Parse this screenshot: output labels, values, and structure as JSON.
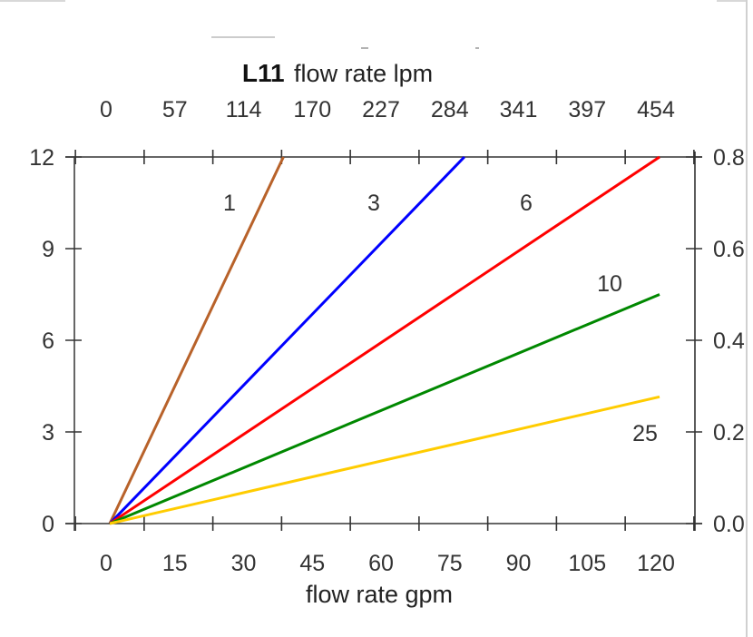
{
  "chart_data": {
    "type": "line",
    "title_bold": "L11",
    "title": "flow rate lpm",
    "xlabel": "flow rate gpm",
    "x_ticks": [
      0,
      15,
      30,
      45,
      60,
      75,
      90,
      105,
      120
    ],
    "x_top_ticks": [
      "0",
      "57",
      "114",
      "170",
      "227",
      "284",
      "341",
      "397",
      "454"
    ],
    "y_ticks": [
      "0",
      "3",
      "6",
      "9",
      "12"
    ],
    "y_right_ticks": [
      "0.0",
      "0.2",
      "0.4",
      "0.6",
      "0.8"
    ],
    "xlim": [
      0,
      120
    ],
    "ylim": [
      0,
      12
    ],
    "grid": false,
    "series": [
      {
        "name": "1",
        "color": "#b8622a",
        "x": [
          0,
          37.9
        ],
        "y": [
          0,
          12
        ]
      },
      {
        "name": "3",
        "color": "#0000ff",
        "x": [
          0,
          77.4
        ],
        "y": [
          0,
          12
        ]
      },
      {
        "name": "6",
        "color": "#ff0000",
        "x": [
          0,
          120
        ],
        "y": [
          0,
          12
        ]
      },
      {
        "name": "10",
        "color": "#008800",
        "x": [
          0,
          120
        ],
        "y": [
          0,
          7.5
        ]
      },
      {
        "name": "25",
        "color": "#ffcc00",
        "x": [
          0,
          120
        ],
        "y": [
          0,
          4.15
        ]
      }
    ]
  }
}
